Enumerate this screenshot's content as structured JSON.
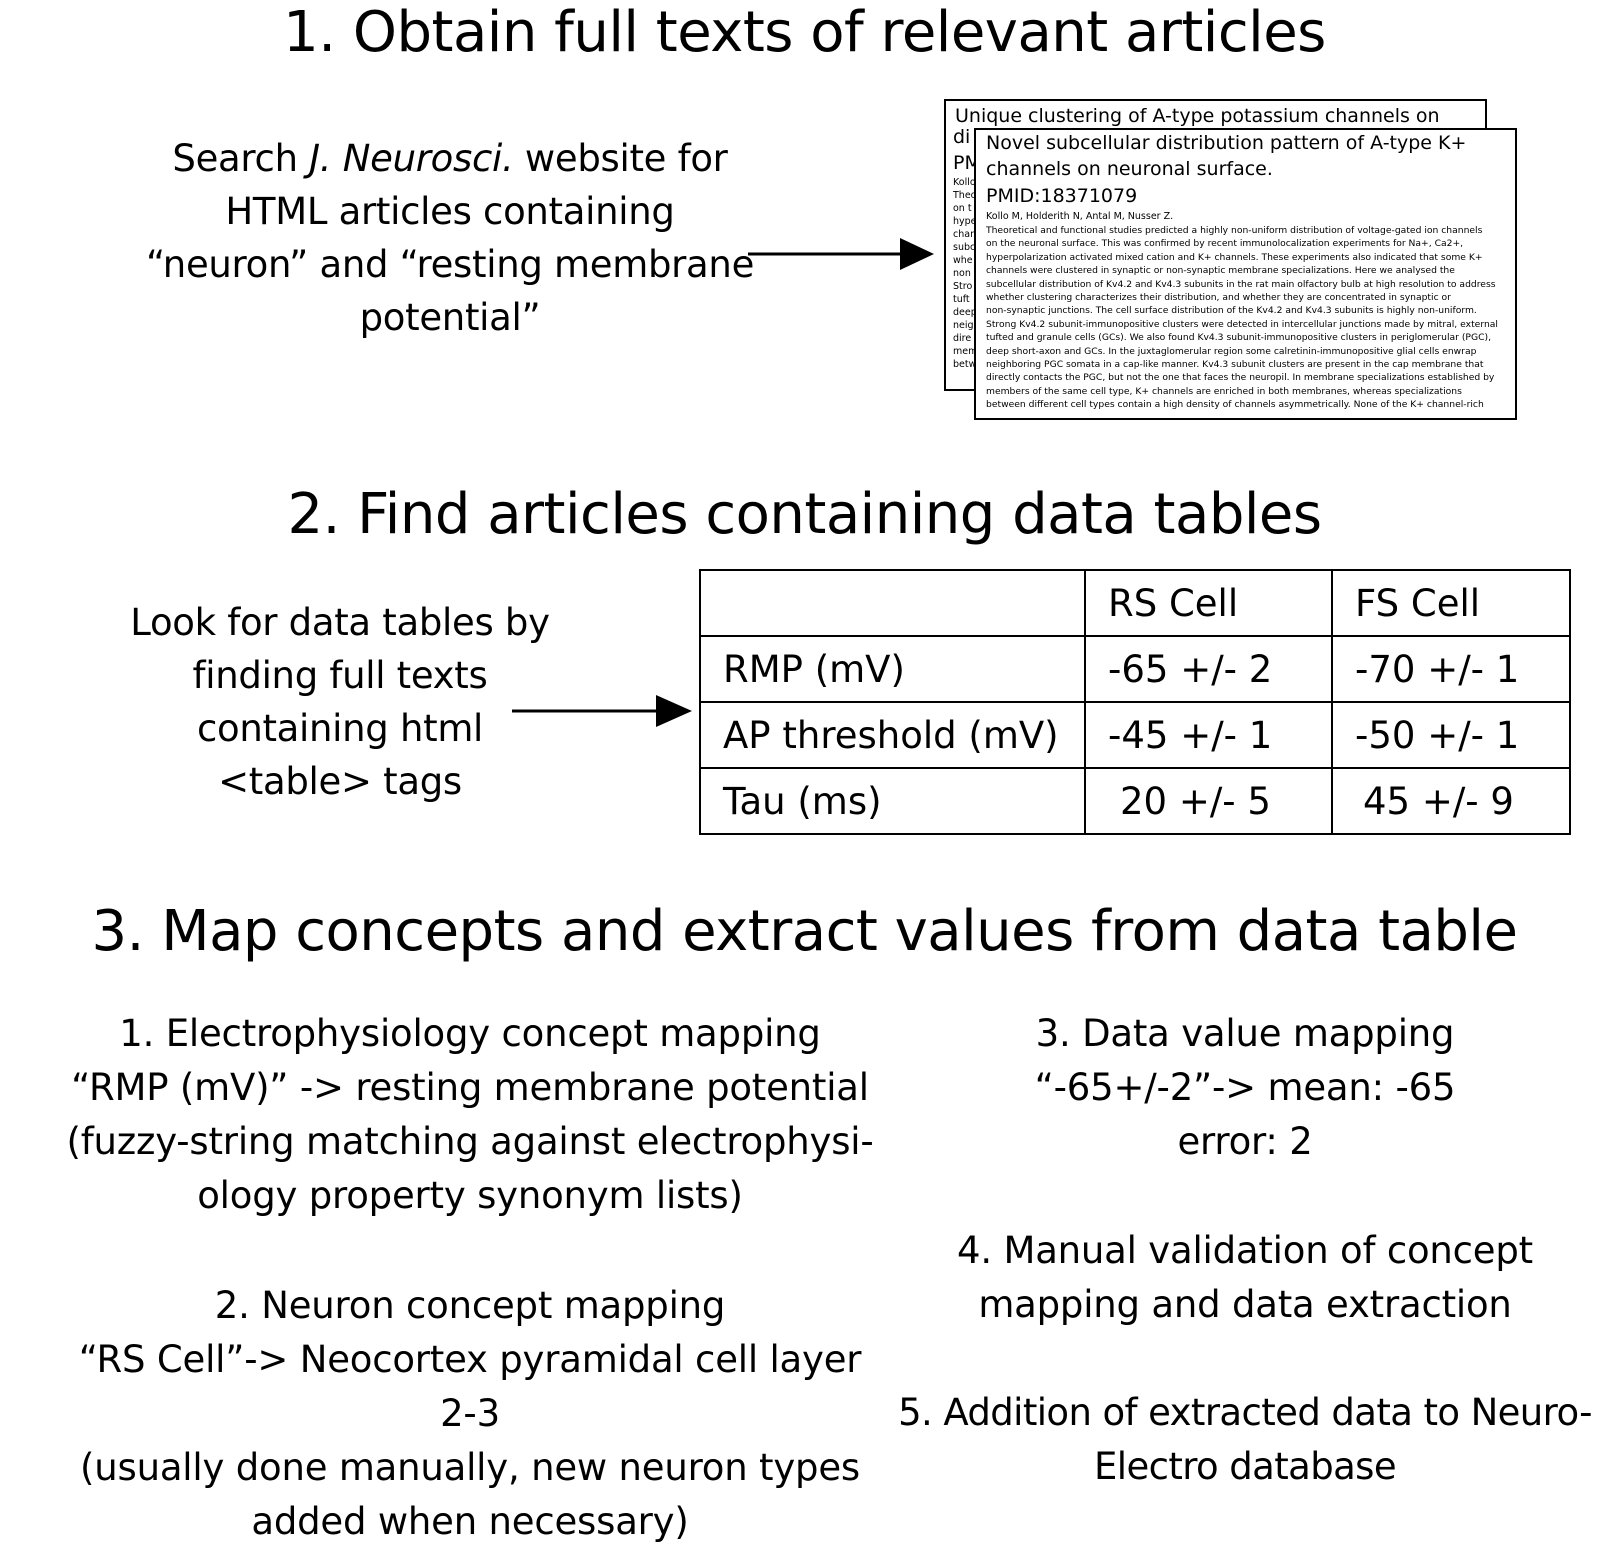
{
  "step1": {
    "heading": "1. Obtain full texts of relevant articles",
    "desc": {
      "prefix": "Search ",
      "journal": "J. Neurosci.",
      "suffix": " website for",
      "line2": "HTML articles containing",
      "line3": "“neuron” and “resting membrane",
      "line4": "potential”"
    },
    "back_article": {
      "title": "Unique clustering of A-type potassium channels on",
      "sliver": [
        "di",
        "PM",
        "Kollo",
        "Theo",
        "on t",
        "hype",
        "chan",
        "subc",
        "whe",
        "non",
        "Stro",
        "tuft",
        "deep",
        "neig",
        "dire",
        "mem",
        "betw"
      ]
    },
    "front_article": {
      "title_lines": [
        "Novel subcellular distribution pattern of A-type K+",
        "channels on neuronal surface."
      ],
      "pmid": "PMID:18371079",
      "authors": "Kollo M, Holderith N, Antal M, Nusser Z.",
      "abstract_lines": [
        "Theoretical and functional studies predicted a highly non-uniform distribution of voltage-gated ion channels",
        "on the neuronal surface. This was confirmed by recent immunolocalization experiments for Na+, Ca2+,",
        "hyperpolarization activated mixed cation and K+ channels. These experiments also indicated that some K+",
        "channels were clustered in synaptic or non-synaptic membrane specializations. Here we analysed the",
        "subcellular distribution of Kv4.2 and Kv4.3 subunits in the rat main olfactory bulb at high resolution to address",
        "whether clustering characterizes their distribution, and whether they are concentrated in synaptic or",
        "non-synaptic junctions. The cell surface distribution of the Kv4.2 and Kv4.3 subunits is highly non-uniform.",
        "Strong Kv4.2 subunit-immunopositive clusters were detected in intercellular junctions made by mitral, external",
        "tufted and granule cells (GCs). We also found Kv4.3 subunit-immunopositive clusters in periglomerular (PGC),",
        "deep short-axon and GCs. In the juxtaglomerular region some calretinin-immunopositive glial cells enwrap",
        "neighboring PGC somata in a cap-like manner. Kv4.3 subunit clusters are present in the cap membrane that",
        "directly contacts the PGC, but not the one that faces the neuropil. In membrane specializations established by",
        "members of the same cell type, K+ channels are enriched in both membranes, whereas specializations",
        "between different cell types contain a high density of channels asymmetrically. None of the K+ channel-rich"
      ]
    }
  },
  "step2": {
    "heading": "2. Find articles containing data tables",
    "desc_lines": [
      "Look for data tables by",
      "finding full texts",
      "containing html",
      "<table> tags"
    ],
    "table": {
      "headers": [
        "",
        "RS Cell",
        "FS Cell"
      ],
      "rows": [
        [
          "RMP (mV)",
          "-65 +/- 2",
          "-70 +/- 1"
        ],
        [
          "AP threshold (mV)",
          "-45 +/- 1",
          "-50 +/- 1"
        ],
        [
          "Tau (ms)",
          "20 +/- 5",
          "45 +/- 9"
        ]
      ]
    }
  },
  "step3": {
    "heading": "3. Map concepts and extract values from data table",
    "item1": [
      "1. Electrophysiology concept mapping",
      "“RMP (mV)” -> resting membrane potential",
      "(fuzzy-string matching against electrophysi-",
      "ology property synonym lists)"
    ],
    "item2": [
      "2. Neuron concept mapping",
      "“RS Cell”-> Neocortex pyramidal cell layer",
      "2-3",
      "(usually done manually, new neuron types",
      "added when necessary)"
    ],
    "item3": [
      "3. Data value mapping",
      "“-65+/-2”-> mean: -65",
      "error: 2"
    ],
    "item4": [
      "4. Manual validation of concept",
      "mapping and data extraction"
    ],
    "item5": [
      "5. Addition of extracted data to Neuro-",
      "Electro database"
    ]
  }
}
